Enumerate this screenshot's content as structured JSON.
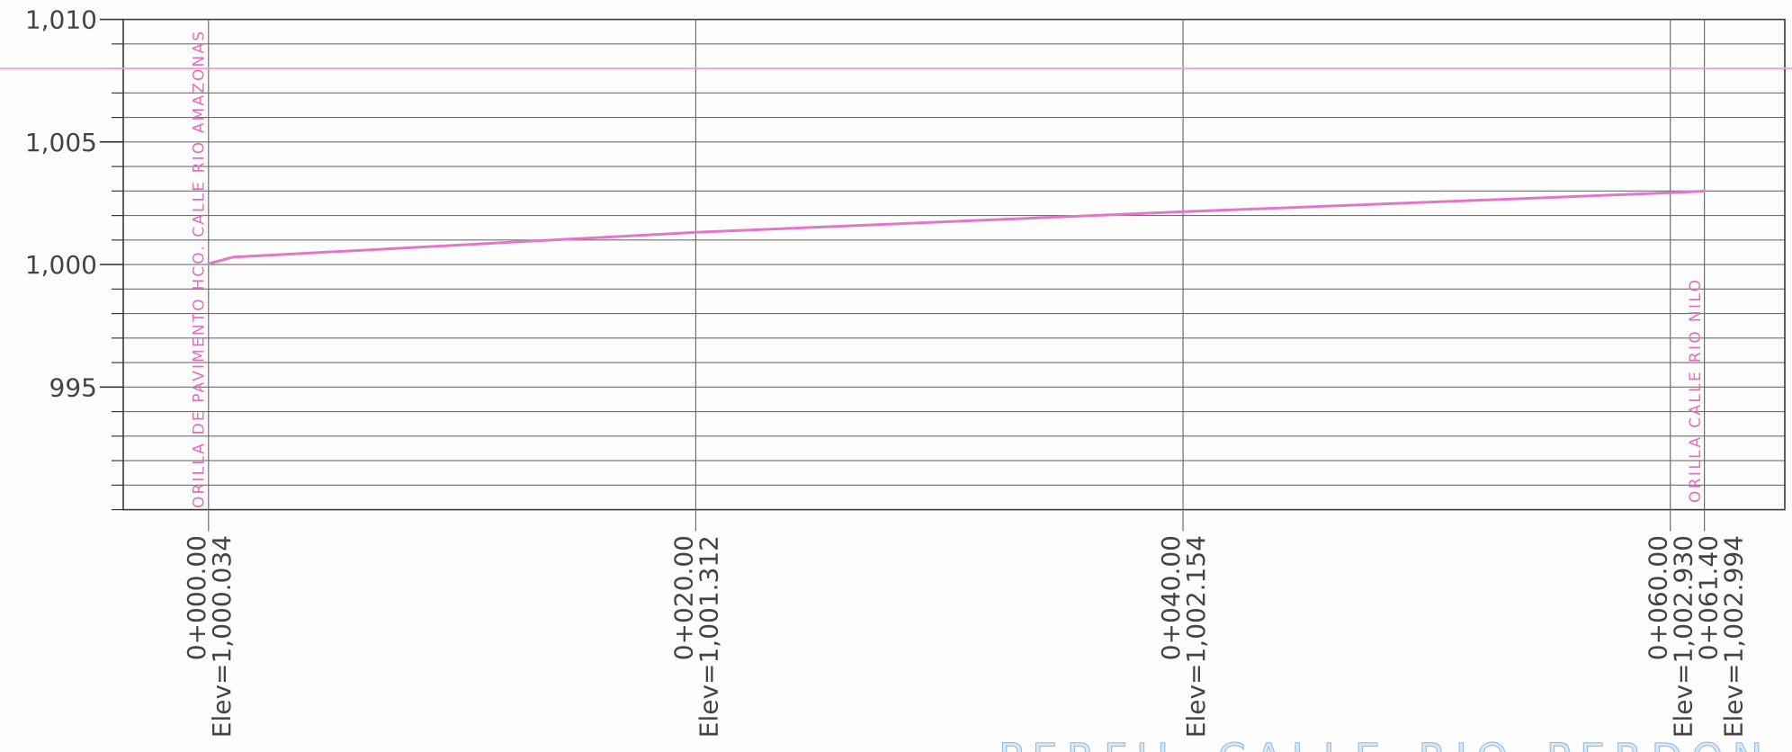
{
  "chart_data": {
    "type": "line",
    "title": "PERFIL CALLE RIO PERDON",
    "x": [
      0,
      1.0,
      20,
      40,
      60,
      61.4
    ],
    "y": [
      1000.034,
      1000.3,
      1001.312,
      1002.154,
      1002.93,
      1002.994
    ],
    "xlim": [
      -3.5,
      64.7
    ],
    "ylim": [
      990,
      1010
    ],
    "grid": true,
    "y_grid_interval": 1,
    "y_ticks": [
      {
        "value": 1010,
        "label": "1,010"
      },
      {
        "value": 1005,
        "label": "1,005"
      },
      {
        "value": 1000,
        "label": "1,000"
      },
      {
        "value": 995,
        "label": "995"
      }
    ],
    "stations": [
      {
        "station": 0,
        "station_label": "0+000.00",
        "elev_label": "Elev=1,000.034"
      },
      {
        "station": 20,
        "station_label": "0+020.00",
        "elev_label": "Elev=1,001.312"
      },
      {
        "station": 40,
        "station_label": "0+040.00",
        "elev_label": "Elev=1,002.154"
      },
      {
        "station": 60,
        "station_label": "0+060.00",
        "elev_label": "Elev=1,002.930"
      },
      {
        "station": 61.4,
        "station_label": "0+061.40",
        "elev_label": "Elev=1,002.994"
      }
    ],
    "annotations": [
      {
        "station": 0,
        "text": "ORILLA DE PAVIMENTO HCO. CALLE RIO AMAZONAS"
      },
      {
        "station": 61.4,
        "text": "ORILLA CALLE RIO NILO"
      }
    ],
    "reference_line": {
      "y": 1008.0
    },
    "colors": {
      "profile": "#e476c8",
      "annotation": "#df6fbe",
      "reference_line": "#f09ad6",
      "grid": "#6e6e6e",
      "axis": "#3a3a3a",
      "text": "#444444",
      "title": "#8fb8df"
    }
  }
}
